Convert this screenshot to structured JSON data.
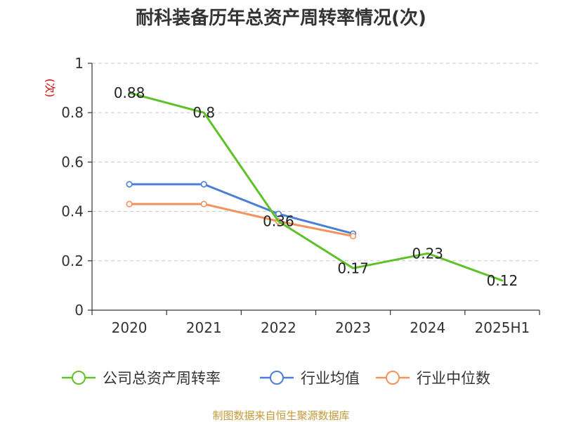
{
  "chart_data": {
    "type": "line",
    "title": "耐科装备历年总资产周转率情况(次)",
    "unit": "(次)",
    "categories": [
      "2020",
      "2021",
      "2022",
      "2023",
      "2024",
      "2025H1"
    ],
    "ylim": [
      0,
      1
    ],
    "yticks": [
      "0",
      "0.2",
      "0.4",
      "0.6",
      "0.8",
      "1"
    ],
    "ytick_values": [
      0,
      0.2,
      0.4,
      0.6,
      0.8,
      1
    ],
    "grid": true,
    "legend_position": "bottom",
    "series": [
      {
        "name": "公司总资产周转率",
        "color": "#5ec227",
        "values": [
          0.88,
          0.8,
          0.36,
          0.17,
          0.23,
          0.12
        ],
        "labels": [
          "0.88",
          "0.8",
          "0.36",
          "0.17",
          "0.23",
          "0.12"
        ],
        "show_markers": false
      },
      {
        "name": "行业均值",
        "color": "#4a7fd6",
        "values": [
          0.51,
          0.51,
          0.39,
          0.31,
          null,
          null
        ],
        "show_markers": true
      },
      {
        "name": "行业中位数",
        "color": "#f5915a",
        "values": [
          0.43,
          0.43,
          0.36,
          0.3,
          null,
          null
        ],
        "show_markers": true
      }
    ]
  },
  "source": "制图数据来自恒生聚源数据库"
}
